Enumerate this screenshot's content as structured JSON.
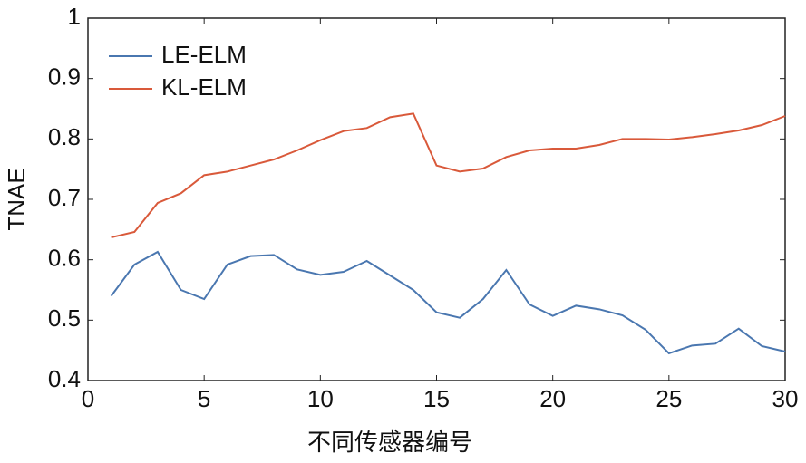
{
  "chart_data": {
    "type": "line",
    "xlabel": "不同传感器编号",
    "ylabel": "TNAE",
    "x": [
      1,
      2,
      3,
      4,
      5,
      6,
      7,
      8,
      9,
      10,
      11,
      12,
      13,
      14,
      15,
      16,
      17,
      18,
      19,
      20,
      21,
      22,
      23,
      24,
      25,
      26,
      27,
      28,
      29,
      30
    ],
    "series": [
      {
        "name": "LE-ELM",
        "color": "#4a77b0",
        "values": [
          0.54,
          0.592,
          0.613,
          0.55,
          0.535,
          0.592,
          0.606,
          0.608,
          0.584,
          0.575,
          0.58,
          0.598,
          0.574,
          0.55,
          0.513,
          0.504,
          0.535,
          0.583,
          0.526,
          0.507,
          0.524,
          0.518,
          0.508,
          0.484,
          0.445,
          0.458,
          0.461,
          0.486,
          0.457,
          0.448
        ]
      },
      {
        "name": "KL-ELM",
        "color": "#d9593a",
        "values": [
          0.637,
          0.646,
          0.694,
          0.71,
          0.74,
          0.746,
          0.756,
          0.766,
          0.781,
          0.798,
          0.813,
          0.818,
          0.836,
          0.842,
          0.756,
          0.746,
          0.751,
          0.77,
          0.781,
          0.784,
          0.784,
          0.79,
          0.8,
          0.8,
          0.799,
          0.803,
          0.808,
          0.814,
          0.823,
          0.838
        ]
      }
    ],
    "xlim": [
      0,
      30
    ],
    "xticks": [
      0,
      5,
      10,
      15,
      20,
      25,
      30
    ],
    "ylim": [
      0.4,
      1
    ],
    "yticks": [
      0.4,
      0.5,
      0.6,
      0.7,
      0.8,
      0.9,
      1
    ],
    "legend": "upper left",
    "grid": false
  }
}
